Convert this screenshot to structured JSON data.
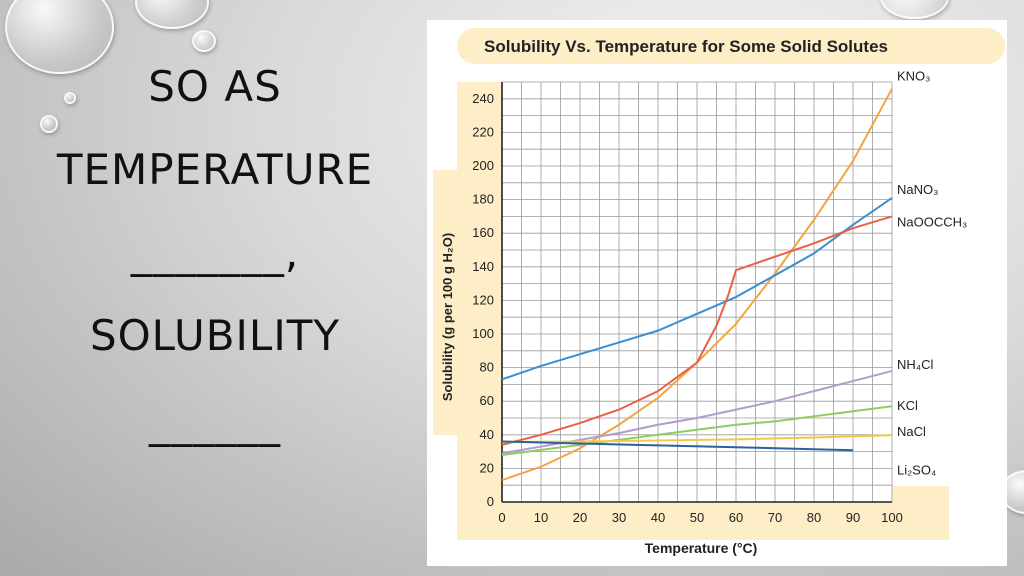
{
  "slide": {
    "line1": "SO AS",
    "line2": "TEMPERATURE",
    "line3": "_______,",
    "line4": "SOLUBILITY",
    "line5": "______"
  },
  "chart_data": {
    "type": "line",
    "title": "Solubility Vs. Temperature for Some Solid Solutes",
    "xlabel": "Temperature (°C)",
    "ylabel": "Solubility (g per 100 g H₂O)",
    "xlim": [
      0,
      100
    ],
    "ylim": [
      0,
      250
    ],
    "xticks": [
      "0",
      "10",
      "20",
      "30",
      "40",
      "50",
      "60",
      "70",
      "80",
      "90",
      "100"
    ],
    "yticks": [
      "0",
      "20",
      "40",
      "60",
      "80",
      "100",
      "120",
      "140",
      "160",
      "180",
      "200",
      "220",
      "240"
    ],
    "grid": true,
    "colors": {
      "panel_bg": "#fdeec8",
      "grid": "#9a9a9a"
    },
    "series": [
      {
        "name": "KNO₃",
        "color": "#f4a345",
        "x": [
          0,
          10,
          20,
          30,
          40,
          50,
          60,
          70,
          80,
          90,
          100
        ],
        "y": [
          13,
          21,
          32,
          46,
          62,
          83,
          106,
          136,
          168,
          203,
          246
        ]
      },
      {
        "name": "NaNO₃",
        "color": "#3a8fd1",
        "x": [
          0,
          10,
          20,
          30,
          40,
          50,
          60,
          70,
          80,
          90,
          100
        ],
        "y": [
          73,
          81,
          88,
          95,
          102,
          112,
          122,
          135,
          148,
          165,
          181
        ]
      },
      {
        "name": "NaOOCCH₃",
        "color": "#e8604a",
        "x": [
          0,
          10,
          20,
          30,
          40,
          50,
          55,
          58,
          60,
          70,
          80,
          90,
          100
        ],
        "y": [
          34,
          40,
          47,
          55,
          66,
          83,
          105,
          123,
          138,
          146,
          154,
          163,
          170
        ]
      },
      {
        "name": "NH₄Cl",
        "color": "#b49ad3",
        "x": [
          0,
          10,
          20,
          30,
          40,
          50,
          60,
          70,
          80,
          90,
          100
        ],
        "y": [
          29,
          33,
          37,
          41,
          46,
          50,
          55,
          60,
          66,
          72,
          78
        ]
      },
      {
        "name": "KCl",
        "color": "#8fcc62",
        "x": [
          0,
          10,
          20,
          30,
          40,
          50,
          60,
          70,
          80,
          90,
          100
        ],
        "y": [
          28,
          31,
          34,
          37,
          40,
          43,
          46,
          48,
          51,
          54,
          57
        ]
      },
      {
        "name": "NaCl",
        "color": "#f3c84a",
        "x": [
          0,
          20,
          40,
          60,
          80,
          100
        ],
        "y": [
          35.7,
          36,
          36.6,
          37.3,
          38.4,
          39.8
        ]
      },
      {
        "name": "Li₂SO₄",
        "color": "#2f5f9e",
        "x": [
          0,
          20,
          40,
          60,
          80,
          90
        ],
        "y": [
          36,
          34.8,
          33.7,
          32.6,
          31.4,
          30.8
        ]
      }
    ]
  }
}
